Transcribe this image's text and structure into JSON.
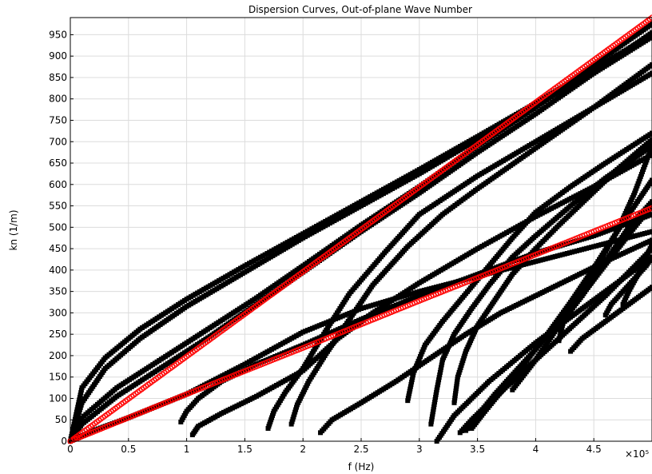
{
  "chart_data": {
    "type": "scatter",
    "title": "Dispersion Curves, Out-of-plane Wave Number",
    "xlabel": "f (Hz)",
    "ylabel": "kn (1/m)",
    "x_multiplier_label": "×10⁵",
    "xlim": [
      0,
      500000
    ],
    "ylim": [
      0,
      990
    ],
    "xticks": [
      0,
      50000,
      100000,
      150000,
      200000,
      250000,
      300000,
      350000,
      400000,
      450000
    ],
    "xtick_labels": [
      "0",
      "0.5",
      "1",
      "1.5",
      "2",
      "2.5",
      "3",
      "3.5",
      "4",
      "4.5"
    ],
    "yticks": [
      0,
      50,
      100,
      150,
      200,
      250,
      300,
      350,
      400,
      450,
      500,
      550,
      600,
      650,
      700,
      750,
      800,
      850,
      900,
      950
    ],
    "grid": true,
    "legend": "none",
    "colors": {
      "structural": "#000000",
      "acoustic": "#ff0000"
    },
    "series": [
      {
        "color": "#000000",
        "marker": "square",
        "x": [
          0,
          10000,
          30000,
          60000,
          100000,
          150000,
          200000,
          250000,
          300000,
          350000,
          400000,
          450000,
          500000
        ],
        "y": [
          0,
          125,
          195,
          262,
          332,
          410,
          485,
          560,
          635,
          712,
          790,
          870,
          950
        ]
      },
      {
        "color": "#000000",
        "marker": "square",
        "x": [
          0,
          10000,
          30000,
          60000,
          100000,
          150000,
          200000,
          250000,
          300000,
          350000,
          400000,
          450000,
          500000
        ],
        "y": [
          0,
          90,
          170,
          240,
          315,
          395,
          475,
          550,
          625,
          705,
          785,
          860,
          945
        ]
      },
      {
        "color": "#000000",
        "marker": "square",
        "x": [
          0,
          10000,
          40000,
          80000,
          120000,
          160000,
          200000,
          250000,
          300000,
          350000,
          400000,
          450000,
          500000
        ],
        "y": [
          0,
          55,
          125,
          195,
          265,
          335,
          410,
          505,
          595,
          690,
          780,
          880,
          975
        ]
      },
      {
        "color": "#000000",
        "marker": "square",
        "x": [
          0,
          10000,
          40000,
          80000,
          120000,
          160000,
          200000,
          250000,
          300000,
          350000,
          400000,
          450000,
          500000
        ],
        "y": [
          0,
          40,
          105,
          175,
          245,
          320,
          395,
          490,
          580,
          675,
          765,
          860,
          955
        ]
      },
      {
        "color": "#000000",
        "marker": "square",
        "x": [
          0,
          20000,
          50000,
          100000,
          150000,
          200000,
          250000,
          300000,
          350000,
          400000,
          450000,
          500000
        ],
        "y": [
          0,
          25,
          55,
          110,
          180,
          255,
          310,
          350,
          385,
          420,
          455,
          490
        ]
      },
      {
        "color": "#000000",
        "marker": "square",
        "x": [
          95000,
          100000,
          110000,
          130000,
          160000,
          200000,
          250000,
          300000,
          350000,
          400000,
          450000,
          500000
        ],
        "y": [
          45,
          70,
          100,
          140,
          180,
          225,
          285,
          340,
          390,
          440,
          480,
          530
        ]
      },
      {
        "color": "#000000",
        "marker": "square",
        "x": [
          105000,
          110000,
          130000,
          160000,
          200000,
          230000,
          260000,
          300000,
          350000,
          400000,
          450000,
          500000
        ],
        "y": [
          15,
          35,
          65,
          105,
          165,
          240,
          300,
          370,
          450,
          525,
          595,
          670
        ]
      },
      {
        "color": "#000000",
        "marker": "square",
        "x": [
          170000,
          175000,
          185000,
          200000,
          220000,
          240000,
          270000,
          300000,
          350000,
          400000,
          450000,
          500000
        ],
        "y": [
          30,
          70,
          115,
          170,
          260,
          345,
          440,
          530,
          620,
          700,
          780,
          860
        ]
      },
      {
        "color": "#000000",
        "marker": "square",
        "x": [
          190000,
          195000,
          205000,
          220000,
          240000,
          260000,
          290000,
          320000,
          350000,
          400000,
          450000,
          500000
        ],
        "y": [
          40,
          85,
          140,
          205,
          285,
          365,
          455,
          530,
          590,
          685,
          780,
          880
        ]
      },
      {
        "color": "#000000",
        "marker": "square",
        "x": [
          215000,
          225000,
          250000,
          280000,
          310000,
          340000,
          370000,
          400000,
          430000,
          460000,
          500000
        ],
        "y": [
          20,
          50,
          90,
          140,
          195,
          250,
          300,
          340,
          380,
          420,
          470
        ]
      },
      {
        "color": "#000000",
        "marker": "square",
        "x": [
          290000,
          295000,
          305000,
          320000,
          340000,
          360000,
          380000,
          400000,
          430000,
          460000,
          500000
        ],
        "y": [
          95,
          160,
          225,
          280,
          345,
          410,
          475,
          535,
          595,
          650,
          720
        ]
      },
      {
        "color": "#000000",
        "marker": "square",
        "x": [
          310000,
          315000,
          320000,
          330000,
          345000,
          360000,
          380000,
          400000,
          430000,
          460000,
          500000
        ],
        "y": [
          40,
          120,
          190,
          250,
          310,
          365,
          430,
          480,
          550,
          615,
          690
        ]
      },
      {
        "color": "#000000",
        "marker": "square",
        "x": [
          315000,
          330000,
          345000,
          360000,
          380000,
          400000,
          420000,
          445000,
          470000,
          500000
        ],
        "y": [
          0,
          60,
          100,
          140,
          185,
          230,
          270,
          320,
          370,
          430
        ]
      },
      {
        "color": "#000000",
        "marker": "square",
        "x": [
          330000,
          333000,
          340000,
          350000,
          365000,
          380000,
          400000,
          420000,
          445000,
          470000,
          500000
        ],
        "y": [
          90,
          150,
          210,
          270,
          330,
          390,
          450,
          505,
          570,
          635,
          705
        ]
      },
      {
        "color": "#000000",
        "marker": "square",
        "x": [
          335000,
          345000,
          360000,
          380000,
          400000,
          420000,
          440000,
          460000,
          480000,
          500000
        ],
        "y": [
          20,
          50,
          90,
          140,
          190,
          240,
          290,
          340,
          395,
          450
        ]
      },
      {
        "color": "#000000",
        "marker": "square",
        "x": [
          340000,
          350000,
          365000,
          385000,
          405000,
          425000,
          445000,
          465000,
          485000,
          500000
        ],
        "y": [
          25,
          60,
          110,
          170,
          230,
          295,
          360,
          430,
          500,
          550
        ]
      },
      {
        "color": "#000000",
        "marker": "square",
        "x": [
          345000,
          355000,
          370000,
          390000,
          410000,
          430000,
          450000,
          470000,
          490000,
          500000
        ],
        "y": [
          30,
          65,
          115,
          180,
          250,
          325,
          405,
          490,
          570,
          610
        ]
      },
      {
        "color": "#000000",
        "marker": "square",
        "x": [
          380000,
          400000,
          420000,
          440000,
          460000,
          480000,
          500000
        ],
        "y": [
          120,
          190,
          270,
          340,
          420,
          500,
          560
        ]
      },
      {
        "color": "#000000",
        "marker": "square",
        "x": [
          420000,
          422000,
          425000,
          430000,
          440000,
          455000,
          470000,
          485000,
          500000
        ],
        "y": [
          235,
          260,
          290,
          320,
          360,
          420,
          490,
          580,
          690
        ]
      },
      {
        "color": "#000000",
        "marker": "square",
        "x": [
          430000,
          440000,
          455000,
          470000,
          485000,
          500000
        ],
        "y": [
          210,
          240,
          270,
          300,
          330,
          360
        ]
      },
      {
        "color": "#000000",
        "marker": "square",
        "x": [
          460000,
          465000,
          475000,
          485000,
          495000,
          500000
        ],
        "y": [
          295,
          320,
          350,
          380,
          410,
          430
        ]
      },
      {
        "color": "#000000",
        "marker": "square",
        "x": [
          475000,
          480000,
          488000,
          495000,
          500000
        ],
        "y": [
          320,
          350,
          390,
          430,
          460
        ]
      },
      {
        "color": "#ff0000",
        "marker": "circle-open",
        "x": [
          0,
          100000,
          200000,
          300000,
          400000,
          500000
        ],
        "y": [
          0,
          198,
          396,
          594,
          792,
          990
        ]
      },
      {
        "color": "#ff0000",
        "marker": "circle-open",
        "x": [
          0,
          100000,
          200000,
          300000,
          400000,
          500000
        ],
        "y": [
          0,
          110,
          218,
          328,
          436,
          545
        ]
      }
    ]
  }
}
